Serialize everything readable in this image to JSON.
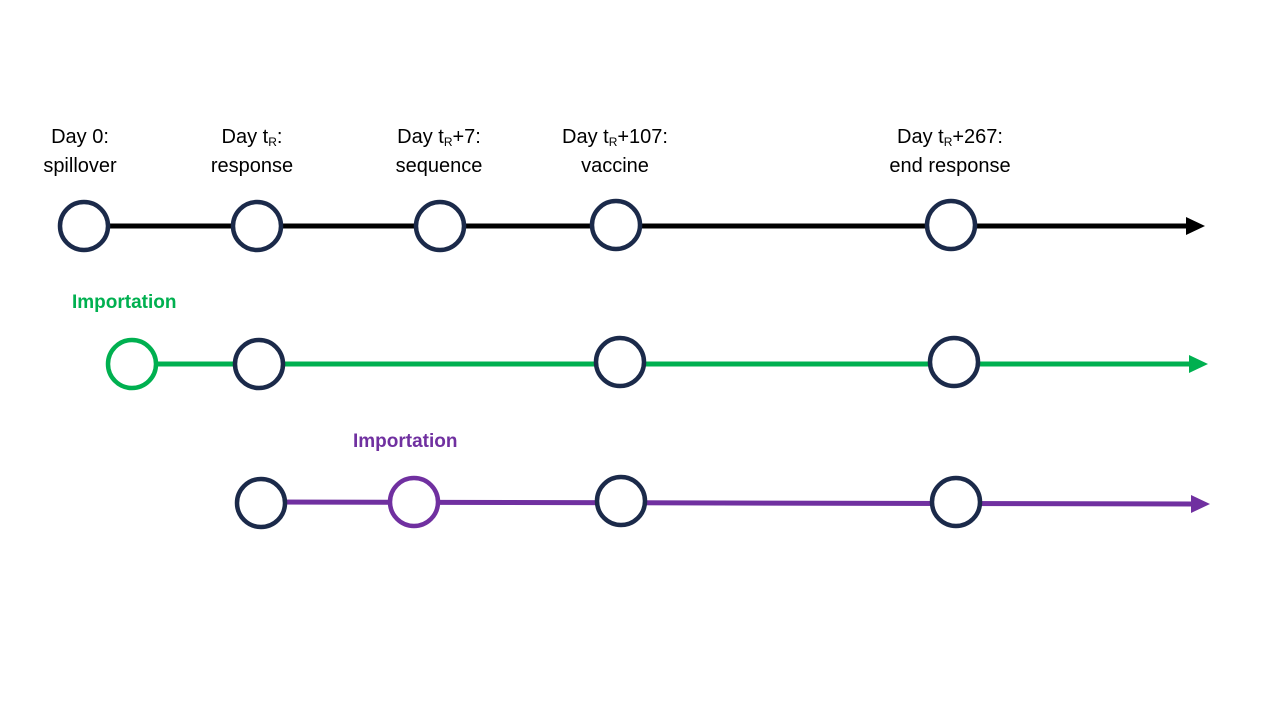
{
  "colors": {
    "node_stroke": "#1b2a4a",
    "main_line": "#000000",
    "green_line": "#00b050",
    "purple_line": "#7030a0"
  },
  "events": [
    {
      "prefix": "Day 0:",
      "sub": "",
      "suffix": "",
      "desc": "spillover"
    },
    {
      "prefix": "Day t",
      "sub": "R",
      "suffix": ":",
      "desc": "response"
    },
    {
      "prefix": "Day t",
      "sub": "R",
      "suffix": "+7:",
      "desc": "sequence"
    },
    {
      "prefix": "Day t",
      "sub": "R",
      "suffix": "+107:",
      "desc": "vaccine"
    },
    {
      "prefix": "Day t",
      "sub": "R",
      "suffix": "+267:",
      "desc": "end response"
    }
  ],
  "timelines": [
    {
      "name": "main",
      "importation_label": ""
    },
    {
      "name": "green",
      "importation_label": "Importation"
    },
    {
      "name": "purple",
      "importation_label": "Importation"
    }
  ]
}
